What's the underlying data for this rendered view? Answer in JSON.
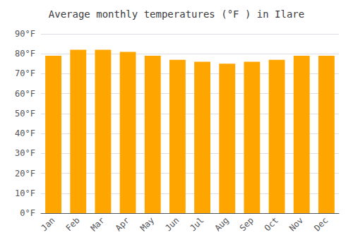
{
  "chart_data": {
    "type": "bar",
    "title": "Average monthly temperatures (°F ) in Ilare",
    "categories": [
      "Jan",
      "Feb",
      "Mar",
      "Apr",
      "May",
      "Jun",
      "Jul",
      "Aug",
      "Sep",
      "Oct",
      "Nov",
      "Dec"
    ],
    "values": [
      79,
      82,
      82,
      81,
      79,
      77,
      76,
      75,
      76,
      77,
      79,
      79
    ],
    "color": "#FFA500",
    "ylim": [
      0,
      90
    ],
    "yticks": [
      {
        "value": 0,
        "label": "0°F"
      },
      {
        "value": 10,
        "label": "10°F"
      },
      {
        "value": 20,
        "label": "20°F"
      },
      {
        "value": 30,
        "label": "30°F"
      },
      {
        "value": 40,
        "label": "40°F"
      },
      {
        "value": 50,
        "label": "50°F"
      },
      {
        "value": 60,
        "label": "60°F"
      },
      {
        "value": 70,
        "label": "70°F"
      },
      {
        "value": 80,
        "label": "80°F"
      },
      {
        "value": 90,
        "label": "90°F"
      }
    ],
    "grid": true
  }
}
